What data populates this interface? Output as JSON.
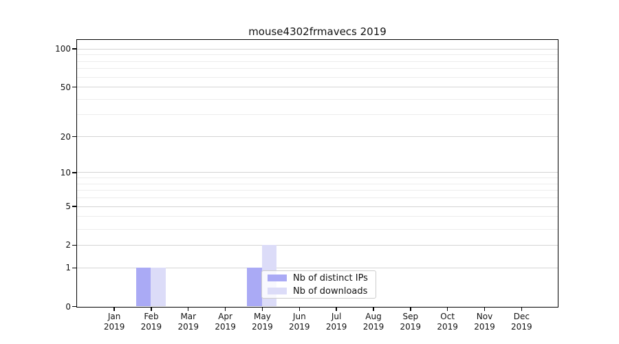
{
  "title": "mouse4302frmavecs 2019",
  "chart_data": {
    "type": "bar",
    "title": "mouse4302frmavecs 2019",
    "categories": [
      "Jan",
      "Feb",
      "Mar",
      "Apr",
      "May",
      "Jun",
      "Jul",
      "Aug",
      "Sep",
      "Oct",
      "Nov",
      "Dec"
    ],
    "year_label": "2019",
    "series": [
      {
        "name": "Nb of distinct IPs",
        "color": "#aaaaf5",
        "values": [
          0,
          1,
          0,
          0,
          1,
          0,
          0,
          0,
          0,
          0,
          0,
          0
        ]
      },
      {
        "name": "Nb of downloads",
        "color": "#dcdcf8",
        "values": [
          0,
          1,
          0,
          0,
          2,
          0,
          0,
          0,
          0,
          0,
          0,
          0
        ]
      }
    ],
    "xlabel": "",
    "ylabel": "",
    "scale": "log1p",
    "ylim": [
      0,
      117
    ],
    "y_major_ticks": [
      0,
      1,
      2,
      5,
      10,
      20,
      50,
      100
    ],
    "y_minor_ticks": [
      3,
      4,
      6,
      7,
      8,
      9,
      30,
      40,
      60,
      70,
      80,
      90
    ],
    "grid": "horizontal",
    "legend_position": "inside-lower-center",
    "colors": {
      "axis": "#000000",
      "grid_major": "#d4d4d4",
      "grid_minor": "#ececec",
      "text": "#111111",
      "background": "#ffffff"
    }
  }
}
